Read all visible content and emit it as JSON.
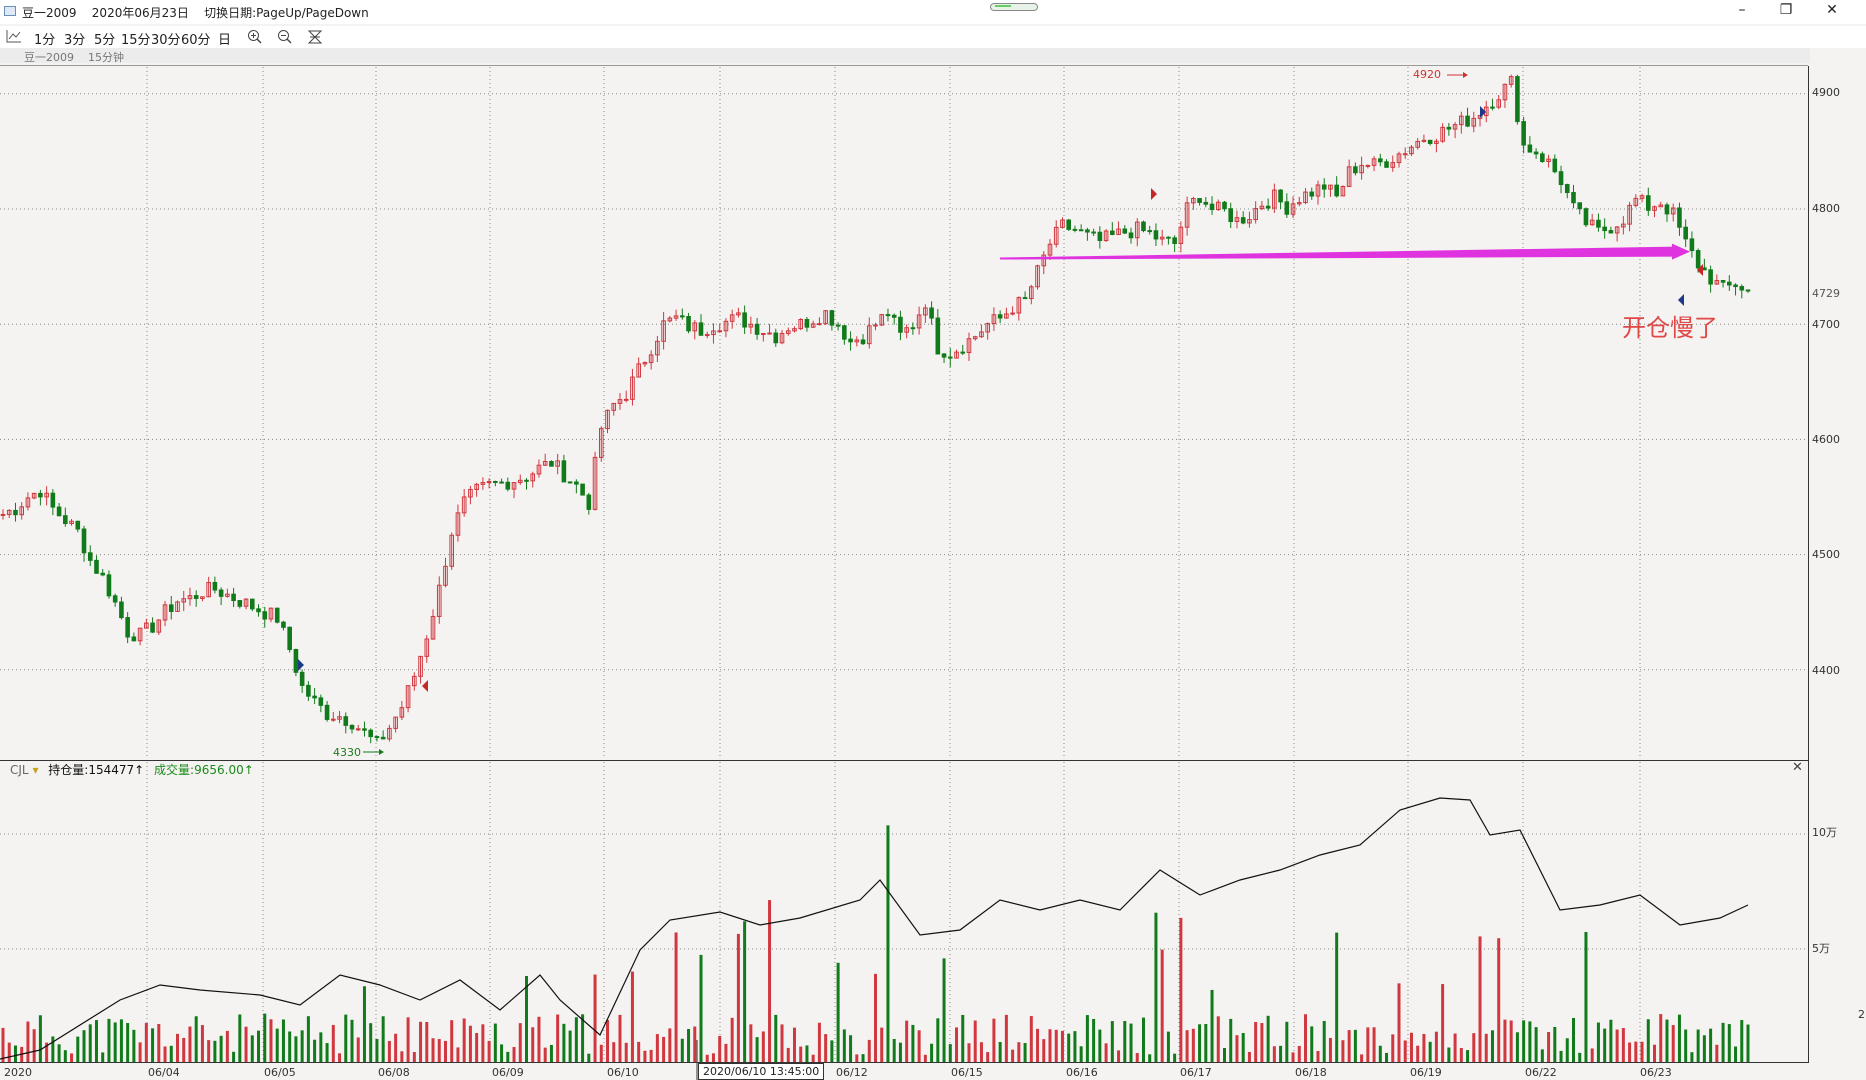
{
  "window": {
    "title": "豆一2009    2020年06月23日    切换日期:PageUp/PageDown",
    "min": "–",
    "restore": "❐",
    "close": "✕"
  },
  "toolbar": {
    "periods": [
      "1分",
      "3分",
      "5分",
      "15分",
      "30分",
      "60分",
      "日"
    ]
  },
  "instrument": {
    "name": "豆一2009",
    "period": "15分钟"
  },
  "price_axis": {
    "ticks": [
      "4900",
      "4800",
      "4729",
      "4700",
      "4600",
      "4500",
      "4400"
    ]
  },
  "annotations": {
    "high": "4920",
    "low": "4330",
    "text": "开仓慢了"
  },
  "indicator": {
    "name": "CJL",
    "oi": "持仓量:154477↑",
    "vol": "成交量:9656.00↑",
    "ticks": [
      "10万",
      "5万"
    ],
    "clip": "2"
  },
  "x_axis": {
    "labels": [
      "2020",
      "06/04",
      "06/05",
      "06/08",
      "06/09",
      "06/10",
      "06/12",
      "06/15",
      "06/16",
      "06/17",
      "06/18",
      "06/19",
      "06/22",
      "06/23"
    ],
    "cursor": "2020/06/10 13:45:00"
  },
  "colors": {
    "up": "#d0373f",
    "down": "#117a1b",
    "trend": "#e033e0",
    "oi_line": "#111111",
    "bg": "#f4f3f1"
  },
  "chart_data": {
    "type": "candlestick",
    "bars_per_day": 14,
    "close_path": [
      4535,
      4540,
      4550,
      4556,
      4540,
      4530,
      4520,
      4495,
      4480,
      4458,
      4433,
      4430,
      4438,
      4450,
      4460,
      4462,
      4468,
      4470,
      4465,
      4460,
      4455,
      4450,
      4445,
      4418,
      4385,
      4372,
      4362,
      4360,
      4355,
      4345,
      4335,
      4350,
      4368,
      4395,
      4430,
      4470,
      4520,
      4545,
      4555,
      4560,
      4562,
      4565,
      4568,
      4575,
      4580,
      4570,
      4560,
      4545,
      4610,
      4630,
      4640,
      4660,
      4680,
      4700,
      4705,
      4698,
      4695,
      4700,
      4702,
      4705,
      4700,
      4695,
      4690,
      4698,
      4700,
      4705,
      4710,
      4700,
      4685,
      4690,
      4700,
      4710,
      4690,
      4700,
      4720,
      4680,
      4675,
      4682,
      4690,
      4700,
      4705,
      4715,
      4720,
      4745,
      4770,
      4785,
      4782,
      4776,
      4772,
      4776,
      4780,
      4782,
      4779,
      4772,
      4770,
      4800,
      4812,
      4800,
      4798,
      4790,
      4795,
      4805,
      4810,
      4802,
      4810,
      4815,
      4820,
      4810,
      4832,
      4840,
      4838,
      4842,
      4848,
      4855,
      4862,
      4865,
      4870,
      4875,
      4880,
      4890,
      4900,
      4910,
      4855,
      4850,
      4840,
      4825,
      4800,
      4788,
      4780,
      4785,
      4792,
      4808,
      4802,
      4806,
      4795,
      4770,
      4752,
      4740,
      4730,
      4735,
      4729
    ],
    "annotated_high": 4920,
    "annotated_low": 4330,
    "trend_line": {
      "from": {
        "date": "06/15",
        "price": 4757
      },
      "to": {
        "date": "06/23",
        "price": 4763
      }
    },
    "volume_ticks": [
      50000,
      100000
    ]
  }
}
